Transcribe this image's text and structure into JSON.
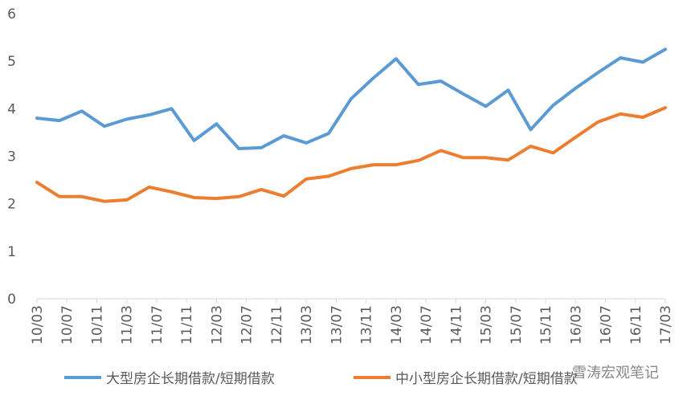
{
  "chart_data": {
    "type": "line",
    "x": [
      0,
      3,
      6,
      9,
      12,
      15,
      18,
      21,
      24,
      27,
      30,
      33,
      36,
      39,
      42,
      45,
      48,
      51,
      54,
      57,
      60,
      63,
      66,
      69,
      72,
      75,
      78,
      81,
      84
    ],
    "xlim": [
      0,
      84
    ],
    "xticks": [
      {
        "value": 0,
        "label": "10/03"
      },
      {
        "value": 4,
        "label": "10/07"
      },
      {
        "value": 8,
        "label": "10/11"
      },
      {
        "value": 12,
        "label": "11/03"
      },
      {
        "value": 16,
        "label": "11/07"
      },
      {
        "value": 20,
        "label": "11/11"
      },
      {
        "value": 24,
        "label": "12/03"
      },
      {
        "value": 28,
        "label": "12/07"
      },
      {
        "value": 32,
        "label": "12/11"
      },
      {
        "value": 36,
        "label": "13/03"
      },
      {
        "value": 40,
        "label": "13/07"
      },
      {
        "value": 44,
        "label": "13/11"
      },
      {
        "value": 48,
        "label": "14/03"
      },
      {
        "value": 52,
        "label": "14/07"
      },
      {
        "value": 56,
        "label": "14/11"
      },
      {
        "value": 60,
        "label": "15/03"
      },
      {
        "value": 64,
        "label": "15/07"
      },
      {
        "value": 68,
        "label": "15/11"
      },
      {
        "value": 72,
        "label": "16/03"
      },
      {
        "value": 76,
        "label": "16/07"
      },
      {
        "value": 80,
        "label": "16/11"
      },
      {
        "value": 84,
        "label": "17/03"
      }
    ],
    "ylim": [
      0,
      6
    ],
    "yticks": [
      0,
      1,
      2,
      3,
      4,
      5,
      6
    ],
    "legend": "bottom",
    "annotation": "雪涛宏观笔记",
    "series": [
      {
        "name": "大型房企长期借款/短期借款",
        "color": "#5b9bd5",
        "values": [
          3.8,
          3.75,
          3.95,
          3.63,
          3.78,
          3.87,
          4.0,
          3.33,
          3.68,
          3.16,
          3.18,
          3.43,
          3.28,
          3.48,
          4.21,
          4.65,
          5.05,
          4.51,
          4.58,
          4.31,
          4.05,
          4.39,
          3.56,
          4.07,
          4.43,
          4.76,
          5.07,
          4.98,
          5.25
        ]
      },
      {
        "name": "中小型房企长期借款/短期借款",
        "color": "#ed7d31",
        "values": [
          2.45,
          2.15,
          2.15,
          2.05,
          2.08,
          2.35,
          2.25,
          2.13,
          2.11,
          2.15,
          2.3,
          2.16,
          2.52,
          2.58,
          2.74,
          2.82,
          2.82,
          2.91,
          3.12,
          2.97,
          2.97,
          2.92,
          3.21,
          3.07,
          3.4,
          3.72,
          3.89,
          3.82,
          4.02
        ]
      }
    ]
  }
}
